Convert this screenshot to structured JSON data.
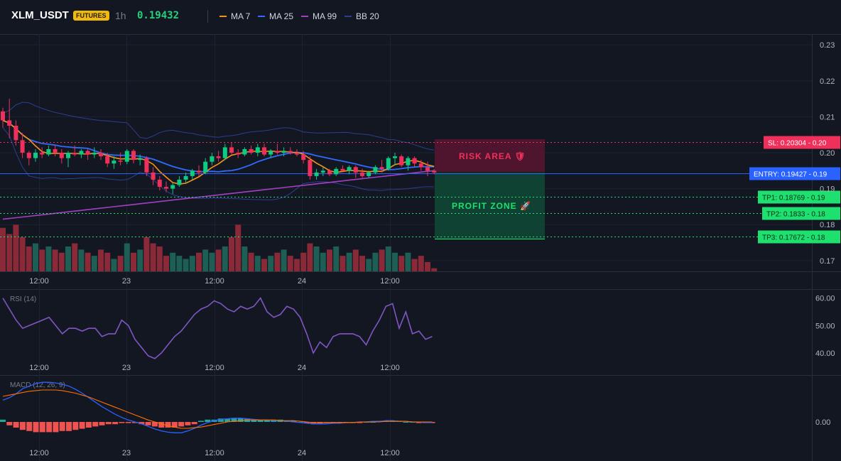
{
  "header": {
    "symbol": "XLM_USDT",
    "badge": "FUTURES",
    "timeframe": "1h",
    "price": "0.19432",
    "legend": [
      {
        "name": "MA 7",
        "color": "#f7931a"
      },
      {
        "name": "MA 25",
        "color": "#2f6bff"
      },
      {
        "name": "MA 99",
        "color": "#a43fc2"
      },
      {
        "name": "BB 20",
        "color": "#2b3f8f"
      }
    ]
  },
  "colors": {
    "up": "#26a69a",
    "up_bright": "#0ecb81",
    "down": "#f0305a",
    "vol_up": "#1d5e55",
    "vol_down": "#8a2a38",
    "grid": "#1f2330",
    "rsi": "#7e57c2",
    "macd_line": "#2962ff",
    "signal_line": "#ff6d00",
    "hist_pos": "#26a69a",
    "hist_neg": "#ef5350"
  },
  "price_axis": {
    "ticks": [
      "0.23",
      "0.22",
      "0.21",
      "0.20",
      "0.19",
      "0.18",
      "0.17"
    ]
  },
  "time_axis": {
    "ticks": [
      "12:00",
      "23",
      "12:00",
      "24",
      "12:00"
    ]
  },
  "levels": {
    "sl": {
      "label": "SL: 0.20304 - 0.20",
      "value": 0.20304,
      "color": "#f0305a"
    },
    "entry": {
      "label": "ENTRY: 0.19427 - 0.19",
      "value": 0.19427,
      "color": "#2962ff"
    },
    "tp1": {
      "label": "TP1: 0.18769 - 0.19",
      "value": 0.18769,
      "color": "#1ee06f"
    },
    "tp2": {
      "label": "TP2: 0.1833 - 0.18",
      "value": 0.1833,
      "color": "#1ee06f"
    },
    "tp3": {
      "label": "TP3: 0.17672 - 0.18",
      "value": 0.17672,
      "color": "#1ee06f"
    }
  },
  "zones": {
    "risk": "RISK AREA 🛡",
    "profit": "PROFIT ZONE 🚀"
  },
  "rsi": {
    "label": "RSI (14)",
    "ticks": [
      "60.00",
      "50.00",
      "40.00"
    ],
    "range": [
      32,
      63
    ]
  },
  "macd": {
    "label": "MACD (12, 26, 9)",
    "ticks": [
      "0.00"
    ]
  },
  "chart_data": {
    "type": "candlestick",
    "x_labels": [
      "12:00",
      "23",
      "12:00",
      "24",
      "12:00"
    ],
    "ylim": [
      0.167,
      0.233
    ],
    "candles": [
      [
        0.2115,
        0.2125,
        0.207,
        0.209
      ],
      [
        0.209,
        0.215,
        0.204,
        0.2075
      ],
      [
        0.2075,
        0.209,
        0.202,
        0.2035
      ],
      [
        0.2035,
        0.2055,
        0.1985,
        0.2
      ],
      [
        0.2,
        0.2005,
        0.1965,
        0.1985
      ],
      [
        0.1985,
        0.201,
        0.1975,
        0.2
      ],
      [
        0.2,
        0.2015,
        0.1985,
        0.1995
      ],
      [
        0.1995,
        0.202,
        0.199,
        0.201
      ],
      [
        0.201,
        0.202,
        0.199,
        0.2
      ],
      [
        0.2,
        0.201,
        0.197,
        0.1985
      ],
      [
        0.1985,
        0.2005,
        0.196,
        0.2
      ],
      [
        0.2,
        0.202,
        0.199,
        0.1995
      ],
      [
        0.1995,
        0.201,
        0.1985,
        0.2005
      ],
      [
        0.2005,
        0.201,
        0.198,
        0.1995
      ],
      [
        0.1995,
        0.2015,
        0.1985,
        0.2
      ],
      [
        0.2,
        0.201,
        0.198,
        0.199
      ],
      [
        0.199,
        0.2,
        0.196,
        0.197
      ],
      [
        0.197,
        0.199,
        0.1955,
        0.1978
      ],
      [
        0.1978,
        0.2,
        0.1965,
        0.1975
      ],
      [
        0.1975,
        0.201,
        0.1968,
        0.2005
      ],
      [
        0.2005,
        0.201,
        0.197,
        0.198
      ],
      [
        0.198,
        0.1995,
        0.1965,
        0.1985
      ],
      [
        0.1985,
        0.199,
        0.1935,
        0.1945
      ],
      [
        0.1945,
        0.196,
        0.191,
        0.1925
      ],
      [
        0.1925,
        0.1935,
        0.1895,
        0.1905
      ],
      [
        0.1905,
        0.192,
        0.189,
        0.19
      ],
      [
        0.19,
        0.1915,
        0.1885,
        0.191
      ],
      [
        0.191,
        0.1935,
        0.1905,
        0.1925
      ],
      [
        0.1925,
        0.1945,
        0.1915,
        0.1935
      ],
      [
        0.1935,
        0.1955,
        0.1925,
        0.195
      ],
      [
        0.195,
        0.1965,
        0.1935,
        0.1945
      ],
      [
        0.1945,
        0.1985,
        0.194,
        0.1975
      ],
      [
        0.1975,
        0.2,
        0.1965,
        0.199
      ],
      [
        0.199,
        0.2005,
        0.1975,
        0.1985
      ],
      [
        0.1985,
        0.2025,
        0.198,
        0.2015
      ],
      [
        0.2015,
        0.203,
        0.1995,
        0.2
      ],
      [
        0.2,
        0.201,
        0.1985,
        0.1995
      ],
      [
        0.1995,
        0.2015,
        0.199,
        0.201
      ],
      [
        0.201,
        0.202,
        0.1995,
        0.2
      ],
      [
        0.2,
        0.2025,
        0.199,
        0.2015
      ],
      [
        0.2015,
        0.2025,
        0.199,
        0.1995
      ],
      [
        0.1995,
        0.201,
        0.1985,
        0.2005
      ],
      [
        0.2005,
        0.2025,
        0.1995,
        0.2
      ],
      [
        0.2,
        0.2015,
        0.199,
        0.2005
      ],
      [
        0.2005,
        0.2015,
        0.1995,
        0.2
      ],
      [
        0.2,
        0.201,
        0.199,
        0.1995
      ],
      [
        0.1995,
        0.2005,
        0.197,
        0.198
      ],
      [
        0.198,
        0.199,
        0.1925,
        0.1935
      ],
      [
        0.1935,
        0.1955,
        0.1925,
        0.1945
      ],
      [
        0.1945,
        0.196,
        0.1935,
        0.195
      ],
      [
        0.195,
        0.1955,
        0.1935,
        0.194
      ],
      [
        0.194,
        0.196,
        0.1935,
        0.1955
      ],
      [
        0.1955,
        0.1965,
        0.1945,
        0.195
      ],
      [
        0.195,
        0.1965,
        0.194,
        0.196
      ],
      [
        0.196,
        0.1965,
        0.193,
        0.1945
      ],
      [
        0.1945,
        0.1955,
        0.193,
        0.1935
      ],
      [
        0.1935,
        0.195,
        0.193,
        0.1945
      ],
      [
        0.1945,
        0.1965,
        0.194,
        0.196
      ],
      [
        0.196,
        0.198,
        0.1945,
        0.1955
      ],
      [
        0.1955,
        0.199,
        0.195,
        0.1985
      ],
      [
        0.1985,
        0.2,
        0.1965,
        0.199
      ],
      [
        0.199,
        0.1995,
        0.196,
        0.1965
      ],
      [
        0.1965,
        0.199,
        0.195,
        0.1985
      ],
      [
        0.1985,
        0.199,
        0.196,
        0.197
      ],
      [
        0.197,
        0.198,
        0.195,
        0.196
      ],
      [
        0.196,
        0.1975,
        0.1935,
        0.195
      ],
      [
        0.195,
        0.1955,
        0.194,
        0.1945
      ]
    ],
    "volume": [
      14,
      12,
      15,
      11,
      8,
      9,
      7,
      8,
      7,
      6,
      8,
      9,
      7,
      6,
      5,
      7,
      6,
      4,
      5,
      9,
      6,
      7,
      11,
      9,
      8,
      5,
      6,
      5,
      4,
      5,
      6,
      7,
      6,
      7,
      8,
      11,
      15,
      8,
      6,
      5,
      4,
      5,
      6,
      7,
      5,
      4,
      6,
      9,
      8,
      6,
      7,
      8,
      5,
      6,
      7,
      5,
      4,
      6,
      7,
      8,
      6,
      5,
      6,
      4,
      5,
      3,
      1
    ]
  }
}
